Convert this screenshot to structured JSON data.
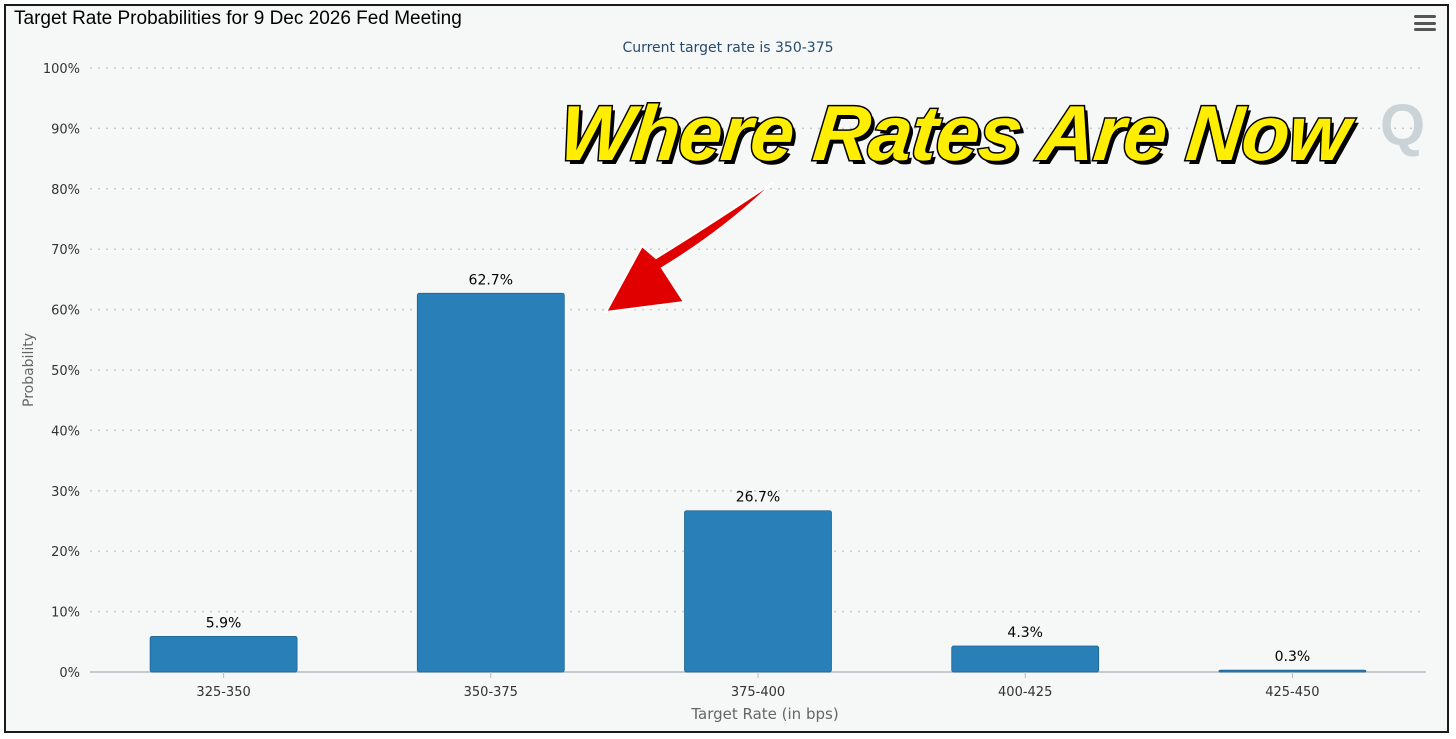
{
  "header": {
    "title": "Target Rate Probabilities for 9 Dec 2026 Fed Meeting",
    "menu_icon": "hamburger-menu-icon"
  },
  "annotation": {
    "text": "Where Rates Are Now",
    "text_color": "#ffee00",
    "arrow_color": "#e10000"
  },
  "watermark": {
    "text": "Q"
  },
  "chart_data": {
    "type": "bar",
    "subtitle": "Current target rate is 350-375",
    "title": "",
    "xlabel": "Target Rate (in bps)",
    "ylabel": "Probability",
    "categories": [
      "325-350",
      "350-375",
      "375-400",
      "400-425",
      "425-450"
    ],
    "values": [
      5.9,
      62.7,
      26.7,
      4.3,
      0.3
    ],
    "data_labels": [
      "5.9%",
      "62.7%",
      "26.7%",
      "4.3%",
      "0.3%"
    ],
    "y_ticks": [
      "0%",
      "10%",
      "20%",
      "30%",
      "40%",
      "50%",
      "60%",
      "70%",
      "80%",
      "90%",
      "100%"
    ],
    "ylim": [
      0,
      100
    ],
    "grid": true,
    "legend": "none",
    "bar_color": "#2980b9"
  }
}
